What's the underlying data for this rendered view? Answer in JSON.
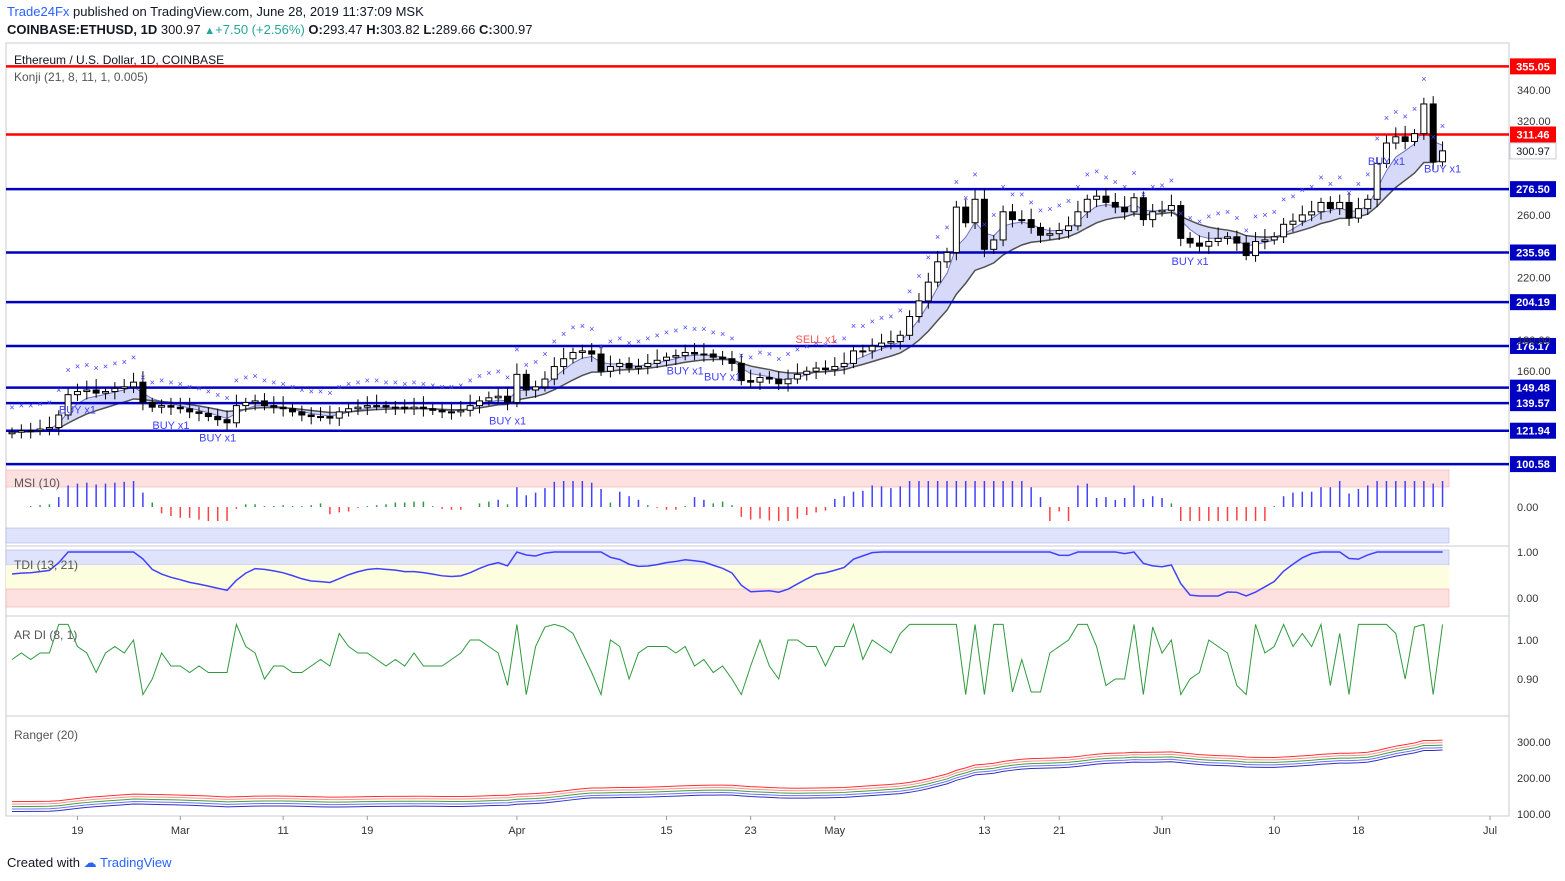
{
  "header": {
    "brand": "Trade24Fx",
    "published": "published on TradingView.com, June 28, 2019 11:37:09 MSK",
    "symbol": "COINBASE:ETHUSD, 1D",
    "last": "300.97",
    "change": "+7.50 (+2.56%)",
    "open_label": "O:",
    "open": "293.47",
    "high_label": "H:",
    "high": "303.82",
    "low_label": "L:",
    "low": "289.66",
    "close_label": "C:",
    "close": "300.97"
  },
  "footer": {
    "created_with": "Created with",
    "brand": "TradingView"
  },
  "colors": {
    "up_candle": "#ffffff",
    "down_candle": "#000000",
    "resistance": "#ff0000",
    "support": "#0000c0",
    "cloud": "#c8cdf5",
    "signal_blue": "#4040ff",
    "signal_red": "#ff5050",
    "rsi_green": "#2e9a3e",
    "rsi_red": "#ff4040"
  },
  "chart_data": {
    "type": "candlestick",
    "title": "Ethereum / U.S. Dollar, 1D, COINBASE",
    "indicator_label": "Konji (21, 8, 11, 1, 0.005)",
    "ylim": [
      100,
      370
    ],
    "y_ticks": [
      "340.00",
      "320.00",
      "260.00",
      "220.00",
      "180.00",
      "160.00"
    ],
    "x_ticks": [
      "19",
      "Mar",
      "11",
      "19",
      "Apr",
      "15",
      "23",
      "May",
      "13",
      "21",
      "Jun",
      "10",
      "18",
      "Jul"
    ],
    "levels": [
      {
        "label": "355.05",
        "value": 355.05,
        "kind": "resistance"
      },
      {
        "label": "311.46",
        "value": 311.46,
        "kind": "resistance"
      },
      {
        "label": "276.50",
        "value": 276.5,
        "kind": "support"
      },
      {
        "label": "235.96",
        "value": 235.96,
        "kind": "support"
      },
      {
        "label": "204.19",
        "value": 204.19,
        "kind": "support"
      },
      {
        "label": "176.17",
        "value": 176.17,
        "kind": "support"
      },
      {
        "label": "149.48",
        "value": 149.48,
        "kind": "support"
      },
      {
        "label": "139.57",
        "value": 139.57,
        "kind": "support"
      },
      {
        "label": "121.94",
        "value": 121.94,
        "kind": "support"
      },
      {
        "label": "100.58",
        "value": 100.58,
        "kind": "support"
      }
    ],
    "last_price_label": "300.97",
    "close": [
      121,
      122,
      122,
      123,
      124,
      132,
      145,
      147,
      148,
      146,
      147,
      149,
      150,
      153,
      140,
      137,
      138,
      137,
      136,
      134,
      133,
      131,
      129,
      127,
      138,
      140,
      141,
      138,
      137,
      136,
      134,
      132,
      131,
      131,
      130,
      134,
      136,
      137,
      138,
      138,
      137,
      137,
      136,
      137,
      136,
      135,
      134,
      134,
      135,
      138,
      141,
      143,
      144,
      140,
      158,
      148,
      150,
      155,
      163,
      168,
      172,
      173,
      171,
      160,
      163,
      165,
      162,
      163,
      165,
      167,
      169,
      170,
      172,
      171,
      171,
      169,
      168,
      165,
      154,
      153,
      156,
      155,
      152,
      155,
      158,
      160,
      162,
      161,
      163,
      165,
      173,
      173,
      176,
      178,
      179,
      183,
      195,
      205,
      217,
      230,
      236,
      265,
      255,
      270,
      238,
      244,
      262,
      257,
      257,
      252,
      247,
      248,
      250,
      253,
      262,
      270,
      272,
      268,
      265,
      262,
      271,
      257,
      262,
      263,
      266,
      245,
      242,
      240,
      243,
      245,
      246,
      242,
      234,
      243,
      244,
      246,
      254,
      256,
      260,
      262,
      268,
      264,
      268,
      258,
      264,
      270,
      293,
      306,
      310,
      307,
      312,
      331,
      294,
      301
    ],
    "signals": [
      {
        "label": "BUY x1",
        "day": 7
      },
      {
        "label": "BUY x1",
        "day": 17
      },
      {
        "label": "BUY x1",
        "day": 22
      },
      {
        "label": "BUY x1",
        "day": 53
      },
      {
        "label": "BUY x1",
        "day": 72
      },
      {
        "label": "BUY x1",
        "day": 76
      },
      {
        "label": "SELL x1",
        "day": 86
      },
      {
        "label": "BUY x1",
        "day": 126
      },
      {
        "label": "BUY x1",
        "day": 147
      },
      {
        "label": "BUY x1",
        "day": 153
      }
    ],
    "panels": [
      {
        "name": "MSI (10)",
        "ticks": [
          "0.00"
        ]
      },
      {
        "name": "TDI (13, 21)",
        "ticks": [
          "1.00",
          "0.00"
        ]
      },
      {
        "name": "AR DI (8, 1)",
        "ticks": [
          "1.00",
          "0.90"
        ]
      },
      {
        "name": "Ranger (20)",
        "ticks": [
          "300.00",
          "200.00",
          "100.00"
        ]
      }
    ]
  }
}
